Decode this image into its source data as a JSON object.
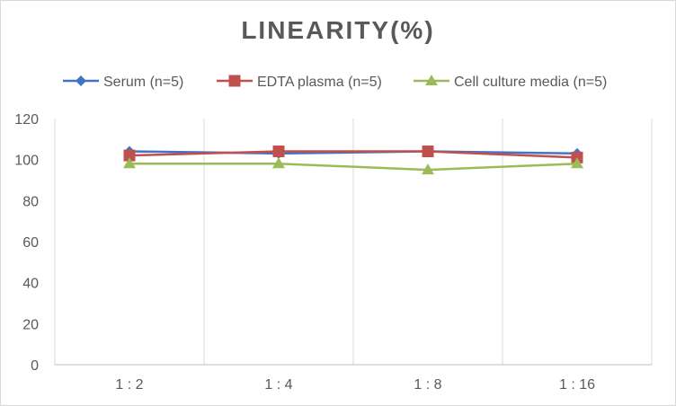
{
  "chart_data": {
    "type": "line",
    "title": "LINEARITY(%)",
    "categories": [
      "1:2",
      "1:4",
      "1:8",
      "1:16"
    ],
    "ylim": [
      0,
      120
    ],
    "yticks": [
      0,
      20,
      40,
      60,
      80,
      100,
      120
    ],
    "grid": "vertical",
    "legend": "top",
    "series": [
      {
        "name": "Serum (n=5)",
        "color": "#4472c4",
        "marker": "diamond",
        "values": [
          104,
          103,
          104,
          103
        ]
      },
      {
        "name": "EDTA plasma (n=5)",
        "color": "#c0504d",
        "marker": "square",
        "values": [
          102,
          104,
          104,
          101
        ]
      },
      {
        "name": "Cell culture media (n=5)",
        "color": "#9bbb59",
        "marker": "triangle",
        "values": [
          98,
          98,
          95,
          98
        ]
      }
    ]
  }
}
